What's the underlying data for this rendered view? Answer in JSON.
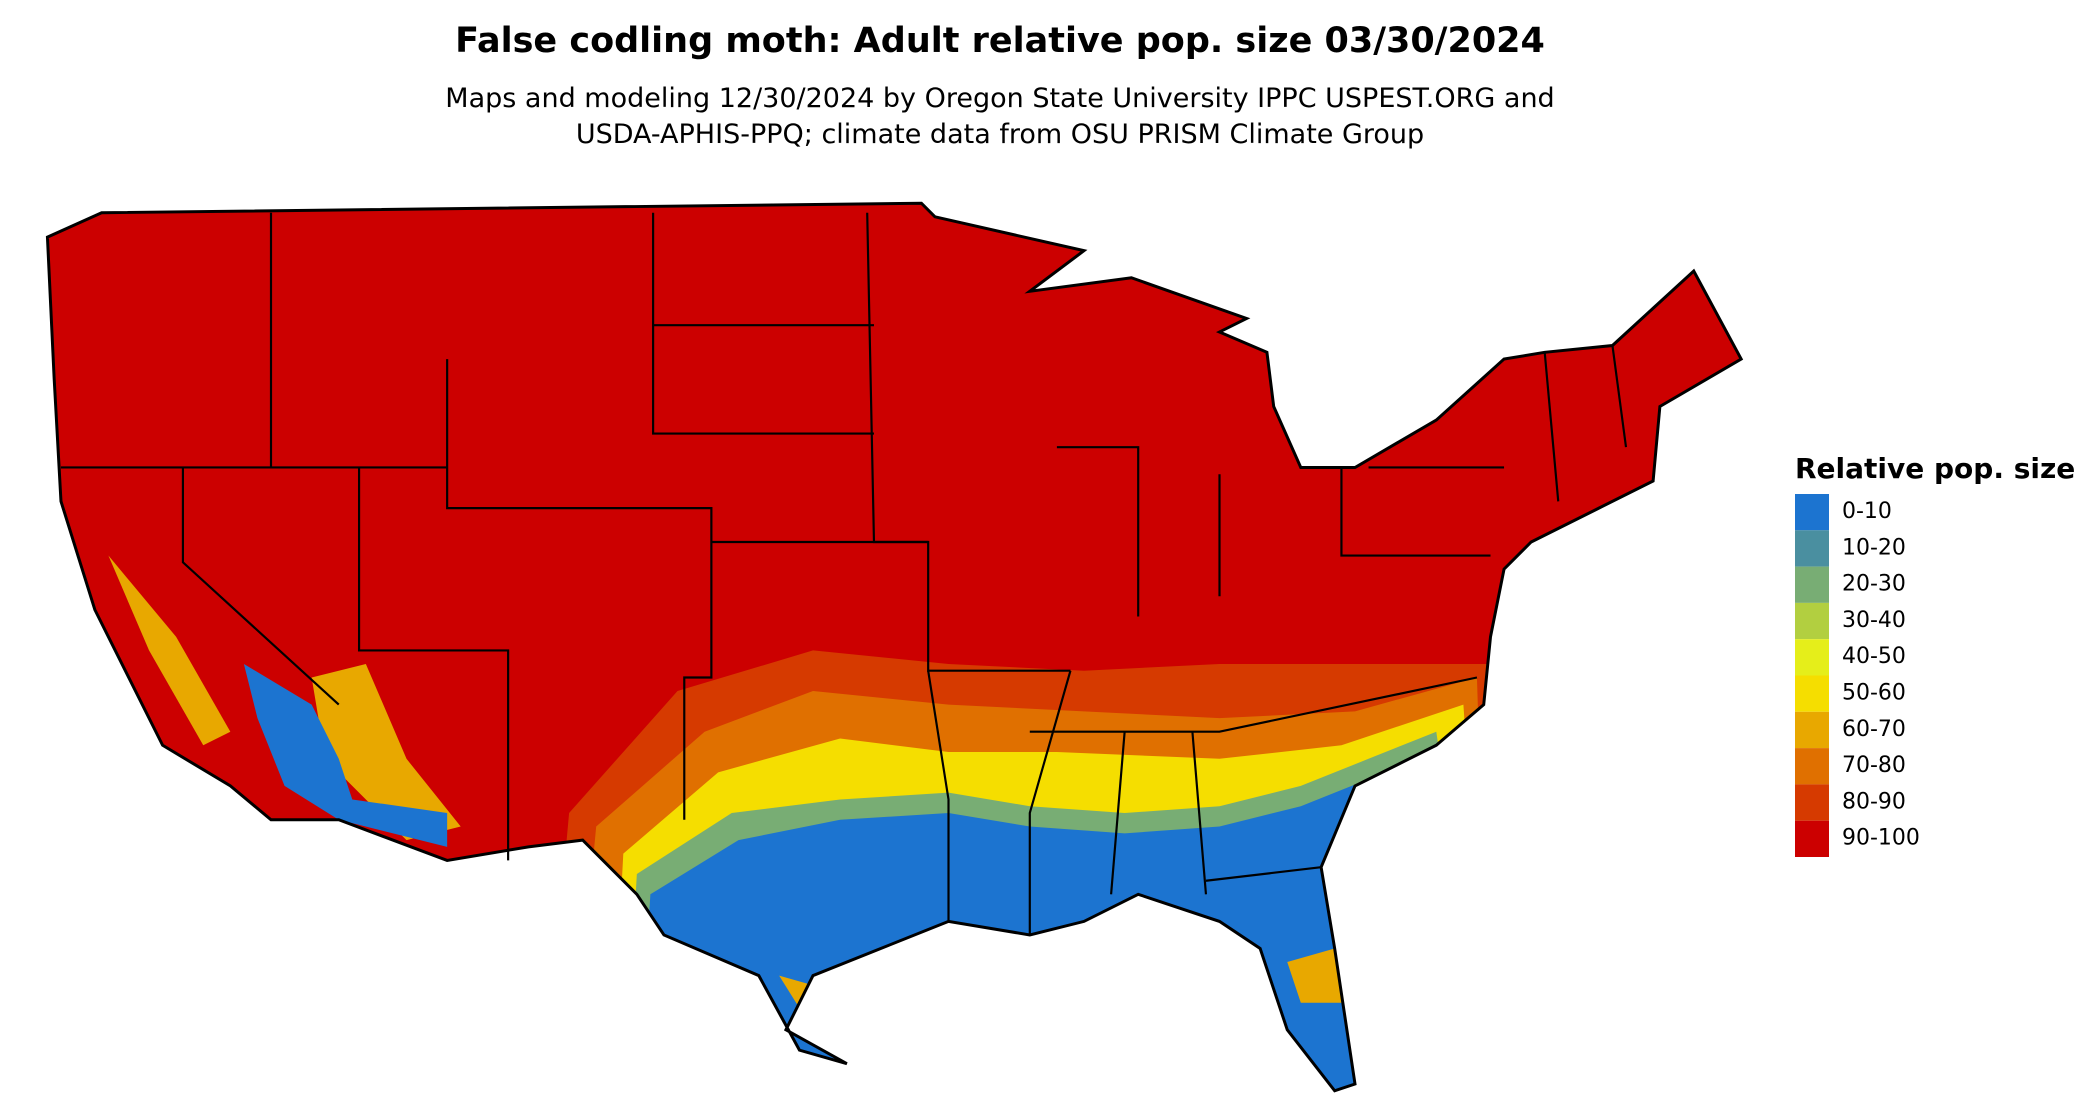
{
  "header": {
    "title": "False codling moth: Adult relative pop. size 03/30/2024",
    "subtitle": [
      "Maps and modeling 12/30/2024 by Oregon State University IPPC USPEST.ORG and",
      "USDA-APHIS-PPQ; climate data from OSU PRISM Climate Group"
    ]
  },
  "legend": {
    "title": "Relative pop. size",
    "items": [
      {
        "label": "0-10",
        "color": "#1c74d0"
      },
      {
        "label": "10-20",
        "color": "#4a8fa0"
      },
      {
        "label": "20-30",
        "color": "#78ad74"
      },
      {
        "label": "30-40",
        "color": "#b2cf40"
      },
      {
        "label": "40-50",
        "color": "#e5ee1a"
      },
      {
        "label": "50-60",
        "color": "#f5de00"
      },
      {
        "label": "60-70",
        "color": "#e8a800"
      },
      {
        "label": "70-80",
        "color": "#e07000"
      },
      {
        "label": "80-90",
        "color": "#d63a00"
      },
      {
        "label": "90-100",
        "color": "#cc0000"
      }
    ]
  }
}
